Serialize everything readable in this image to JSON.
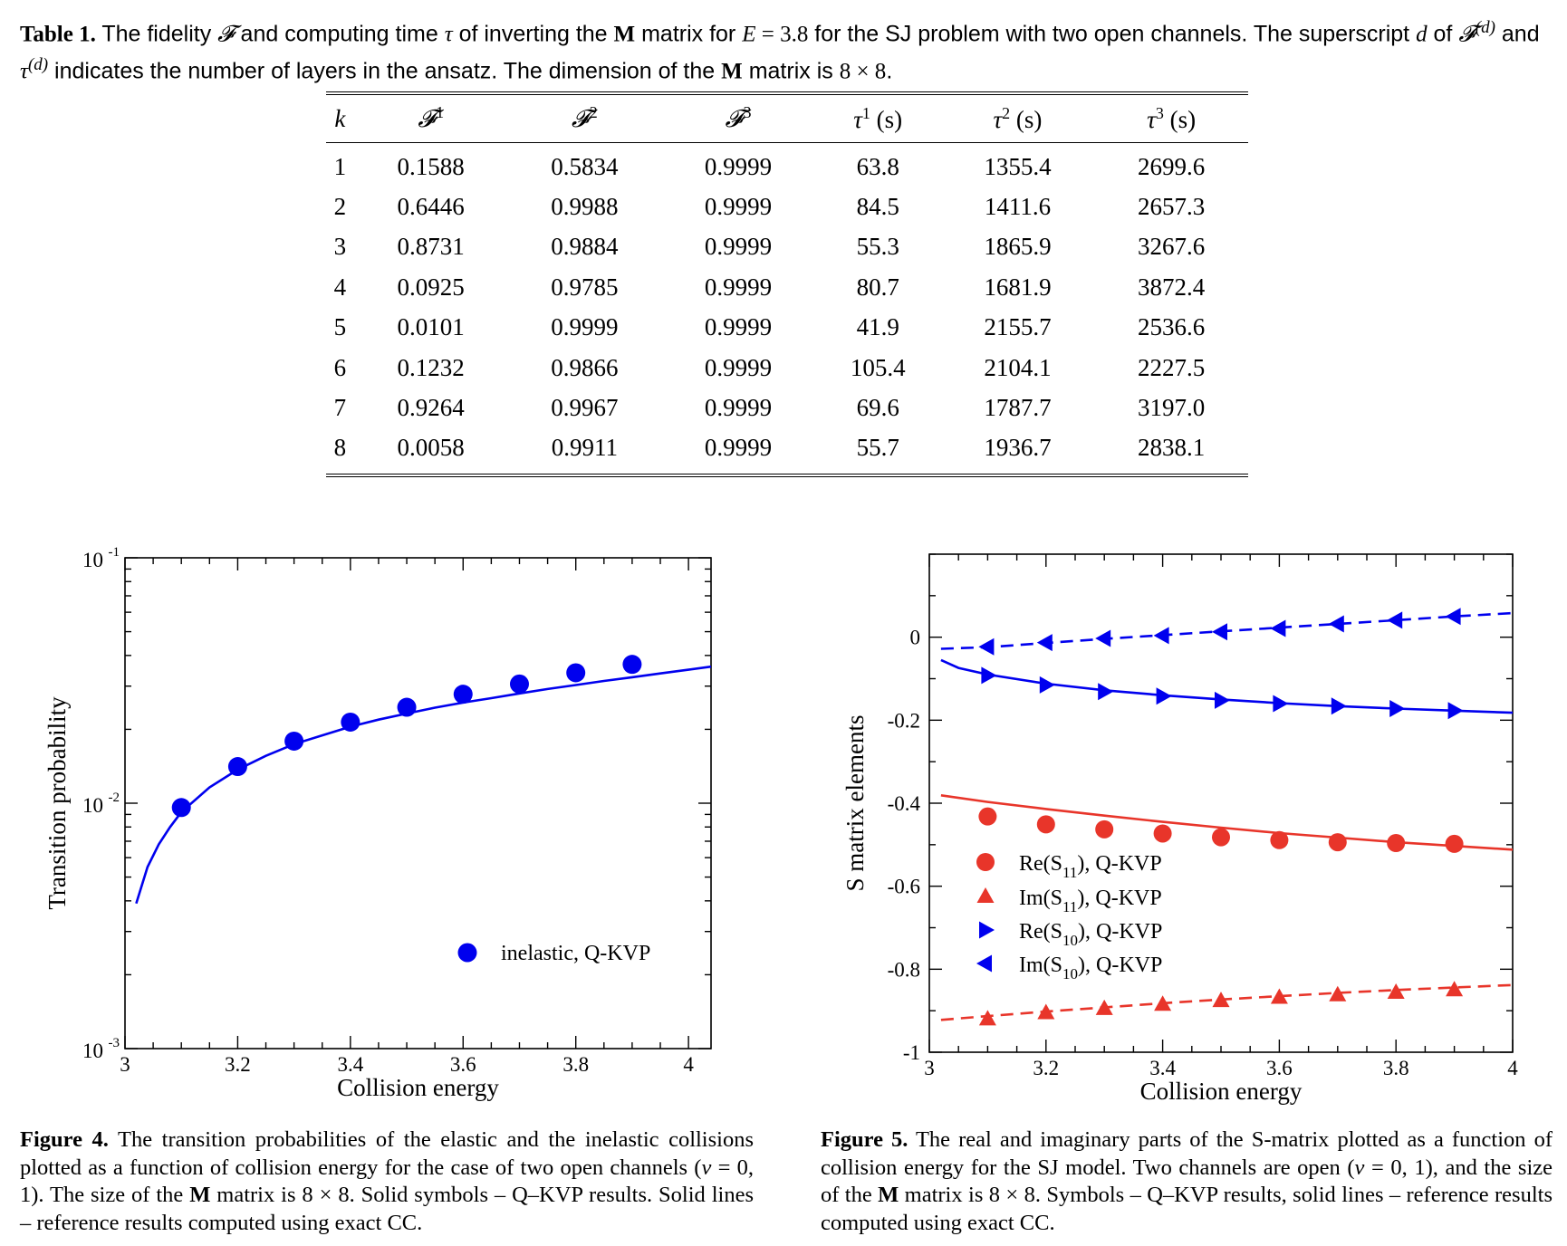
{
  "table": {
    "caption": {
      "label": "Table 1.",
      "t1": " The fidelity ",
      "sym_F": "𝓕",
      "t2": " and computing time ",
      "sym_tau": "τ",
      "t3": " of inverting the ",
      "sym_M": "M",
      "t4": " matrix for ",
      "sym_E": "E",
      "eq": " = 3.8",
      "t5": " for the SJ problem with two open channels. The superscript ",
      "sym_d": "d",
      "t6": " of ",
      "sym_Fd": "𝓕",
      "sup_d1": "(d)",
      "t7": " and ",
      "sym_taud": "τ",
      "sup_d2": "(d)",
      "t8": " indicates the number of layers in the ansatz. The dimension of the ",
      "sym_M2": "M",
      "t9": " matrix is ",
      "dim": "8 × 8",
      "t10": "."
    },
    "headers": [
      {
        "base": "k",
        "sup": "",
        "unit": ""
      },
      {
        "base": "𝓕",
        "sup": "1",
        "unit": ""
      },
      {
        "base": "𝓕",
        "sup": "2",
        "unit": ""
      },
      {
        "base": "𝓕",
        "sup": "3",
        "unit": ""
      },
      {
        "base": "τ",
        "sup": "1",
        "unit": " (s)"
      },
      {
        "base": "τ",
        "sup": "2",
        "unit": " (s)"
      },
      {
        "base": "τ",
        "sup": "3",
        "unit": " (s)"
      }
    ],
    "rows": [
      [
        "1",
        "0.1588",
        "0.5834",
        "0.9999",
        "63.8",
        "1355.4",
        "2699.6"
      ],
      [
        "2",
        "0.6446",
        "0.9988",
        "0.9999",
        "84.5",
        "1411.6",
        "2657.3"
      ],
      [
        "3",
        "0.8731",
        "0.9884",
        "0.9999",
        "55.3",
        "1865.9",
        "3267.6"
      ],
      [
        "4",
        "0.0925",
        "0.9785",
        "0.9999",
        "80.7",
        "1681.9",
        "3872.4"
      ],
      [
        "5",
        "0.0101",
        "0.9999",
        "0.9999",
        "41.9",
        "2155.7",
        "2536.6"
      ],
      [
        "6",
        "0.1232",
        "0.9866",
        "0.9999",
        "105.4",
        "2104.1",
        "2227.5"
      ],
      [
        "7",
        "0.9264",
        "0.9967",
        "0.9999",
        "69.6",
        "1787.7",
        "3197.0"
      ],
      [
        "8",
        "0.0058",
        "0.9911",
        "0.9999",
        "55.7",
        "1936.7",
        "2838.1"
      ]
    ]
  },
  "chart_data": [
    {
      "type": "scatter",
      "id": "figure-4",
      "xlabel": "Collision energy",
      "ylabel": "Transition probability",
      "xlim": [
        3,
        4.04
      ],
      "ylim": [
        0.001,
        0.1
      ],
      "yscale": "log",
      "xticks": [
        3,
        3.2,
        3.4,
        3.6,
        3.8,
        4
      ],
      "xtick_labels": [
        "3",
        "3.2",
        "3.4",
        "3.6",
        "3.8",
        "4"
      ],
      "yticks": [
        0.001,
        0.01,
        0.1
      ],
      "ytick_labels": [
        {
          "base": "10",
          "exp": "-3"
        },
        {
          "base": "10",
          "exp": "-2"
        },
        {
          "base": "10",
          "exp": "-1"
        }
      ],
      "legend": {
        "placement": "lower-right",
        "label": "inelastic, Q-KVP",
        "marker": "circle",
        "color": "#0000ee"
      },
      "series": [
        {
          "kind": "points",
          "marker": "circle",
          "color": "#0000ee",
          "x": [
            3.1,
            3.2,
            3.3,
            3.4,
            3.5,
            3.6,
            3.7,
            3.8,
            3.9
          ],
          "y": [
            0.0096,
            0.0141,
            0.0179,
            0.0214,
            0.0246,
            0.0278,
            0.0306,
            0.034,
            0.0368
          ]
        },
        {
          "kind": "line",
          "style": "solid",
          "color": "#0000ee",
          "x": [
            3.02,
            3.04,
            3.06,
            3.08,
            3.1,
            3.15,
            3.2,
            3.25,
            3.3,
            3.35,
            3.4,
            3.45,
            3.5,
            3.55,
            3.6,
            3.65,
            3.7,
            3.75,
            3.8,
            3.85,
            3.9,
            3.95,
            4.0,
            4.04
          ],
          "y": [
            0.0039,
            0.0055,
            0.0068,
            0.008,
            0.0092,
            0.0116,
            0.0137,
            0.0156,
            0.0174,
            0.0189,
            0.0205,
            0.0219,
            0.0232,
            0.0245,
            0.0257,
            0.0268,
            0.028,
            0.0292,
            0.0303,
            0.0315,
            0.0326,
            0.0338,
            0.035,
            0.036
          ]
        }
      ]
    },
    {
      "type": "line",
      "id": "figure-5",
      "xlabel": "Collision energy",
      "ylabel": "S matrix elements",
      "xlim": [
        3,
        4
      ],
      "ylim": [
        -1,
        0.2
      ],
      "xticks": [
        3,
        3.2,
        3.4,
        3.6,
        3.8,
        4
      ],
      "xtick_labels": [
        "3",
        "3.2",
        "3.4",
        "3.6",
        "3.8",
        "4"
      ],
      "yticks": [
        -1,
        -0.8,
        -0.6,
        -0.4,
        -0.2,
        0
      ],
      "ytick_labels": [
        "-1",
        "-0.8",
        "-0.6",
        "-0.4",
        "-0.2",
        "0"
      ],
      "legend": {
        "placement": "lower-left",
        "entries": [
          {
            "pre": "Re(S",
            "sub": "11",
            "post": "), Q-KVP",
            "marker": "circle",
            "color": "#e8352a"
          },
          {
            "pre": "Im(S",
            "sub": "11",
            "post": "), Q-KVP",
            "marker": "triangle-up",
            "color": "#e8352a"
          },
          {
            "pre": "Re(S",
            "sub": "10",
            "post": "), Q-KVP",
            "marker": "triangle-right",
            "color": "#0000ee"
          },
          {
            "pre": "Im(S",
            "sub": "10",
            "post": "), Q-KVP",
            "marker": "triangle-left",
            "color": "#0000ee"
          }
        ]
      },
      "series": [
        {
          "name": "Re(S11), Q-KVP",
          "kind": "points",
          "marker": "circle",
          "color": "#e8352a",
          "x": [
            3.1,
            3.2,
            3.3,
            3.4,
            3.5,
            3.6,
            3.7,
            3.8,
            3.9
          ],
          "y": [
            -0.432,
            -0.451,
            -0.463,
            -0.473,
            -0.482,
            -0.489,
            -0.494,
            -0.496,
            -0.498
          ]
        },
        {
          "name": "Im(S11), Q-KVP",
          "kind": "points",
          "marker": "triangle-up",
          "color": "#e8352a",
          "x": [
            3.1,
            3.2,
            3.3,
            3.4,
            3.5,
            3.6,
            3.7,
            3.8,
            3.9
          ],
          "y": [
            -0.92,
            -0.905,
            -0.895,
            -0.885,
            -0.876,
            -0.868,
            -0.862,
            -0.856,
            -0.85
          ]
        },
        {
          "name": "Re(S10), Q-KVP",
          "kind": "points",
          "marker": "triangle-right",
          "color": "#0000ee",
          "x": [
            3.1,
            3.2,
            3.3,
            3.4,
            3.5,
            3.6,
            3.7,
            3.8,
            3.9
          ],
          "y": [
            -0.092,
            -0.115,
            -0.131,
            -0.142,
            -0.152,
            -0.16,
            -0.166,
            -0.172,
            -0.177
          ]
        },
        {
          "name": "Im(S10), Q-KVP",
          "kind": "points",
          "marker": "triangle-left",
          "color": "#0000ee",
          "x": [
            3.1,
            3.2,
            3.3,
            3.4,
            3.5,
            3.6,
            3.7,
            3.8,
            3.9
          ],
          "y": [
            -0.023,
            -0.013,
            -0.003,
            0.004,
            0.013,
            0.021,
            0.032,
            0.041,
            0.05
          ]
        },
        {
          "kind": "line",
          "style": "solid",
          "color": "#e8352a",
          "x": [
            3.02,
            3.1,
            3.2,
            3.3,
            3.4,
            3.5,
            3.6,
            3.7,
            3.8,
            3.9,
            4.0
          ],
          "y": [
            -0.381,
            -0.397,
            -0.414,
            -0.43,
            -0.445,
            -0.459,
            -0.472,
            -0.483,
            -0.494,
            -0.503,
            -0.512
          ]
        },
        {
          "kind": "line",
          "style": "dashed",
          "color": "#e8352a",
          "x": [
            3.02,
            3.1,
            3.2,
            3.3,
            3.4,
            3.5,
            3.6,
            3.7,
            3.8,
            3.9,
            4.0
          ],
          "y": [
            -0.922,
            -0.913,
            -0.902,
            -0.892,
            -0.882,
            -0.873,
            -0.865,
            -0.857,
            -0.85,
            -0.844,
            -0.838
          ]
        },
        {
          "kind": "line",
          "style": "solid",
          "color": "#0000ee",
          "x": [
            3.02,
            3.05,
            3.1,
            3.2,
            3.3,
            3.4,
            3.5,
            3.6,
            3.7,
            3.8,
            3.9,
            4.0
          ],
          "y": [
            -0.055,
            -0.074,
            -0.09,
            -0.112,
            -0.128,
            -0.14,
            -0.15,
            -0.159,
            -0.166,
            -0.172,
            -0.177,
            -0.182
          ]
        },
        {
          "kind": "line",
          "style": "dashed",
          "color": "#0000ee",
          "x": [
            3.02,
            3.1,
            3.2,
            3.3,
            3.4,
            3.5,
            3.6,
            3.7,
            3.8,
            3.9,
            4.0
          ],
          "y": [
            -0.028,
            -0.024,
            -0.014,
            -0.004,
            0.005,
            0.014,
            0.023,
            0.032,
            0.041,
            0.05,
            0.058
          ]
        }
      ]
    }
  ],
  "figure4_caption": {
    "label": "Figure 4.",
    "t1": " The transition probabilities of the elastic and the inelastic collisions plotted as a function of collision energy for the case of two open channels (",
    "sym_v": "v",
    "t2": " = 0, 1). The size of the ",
    "sym_M": "M",
    "t3": " matrix is 8 × 8. Solid symbols – Q–KVP results. Solid lines – reference results computed using exact CC."
  },
  "figure5_caption": {
    "label": "Figure 5.",
    "t1": " The real and imaginary parts of the S-matrix plotted as a function of collision energy for the SJ model. Two channels are open (",
    "sym_v": "v",
    "t2": " = 0, 1), and the size of the ",
    "sym_M": "M",
    "t3": " matrix is 8 × 8. Symbols – Q–KVP results, solid lines – reference results computed using exact CC."
  }
}
